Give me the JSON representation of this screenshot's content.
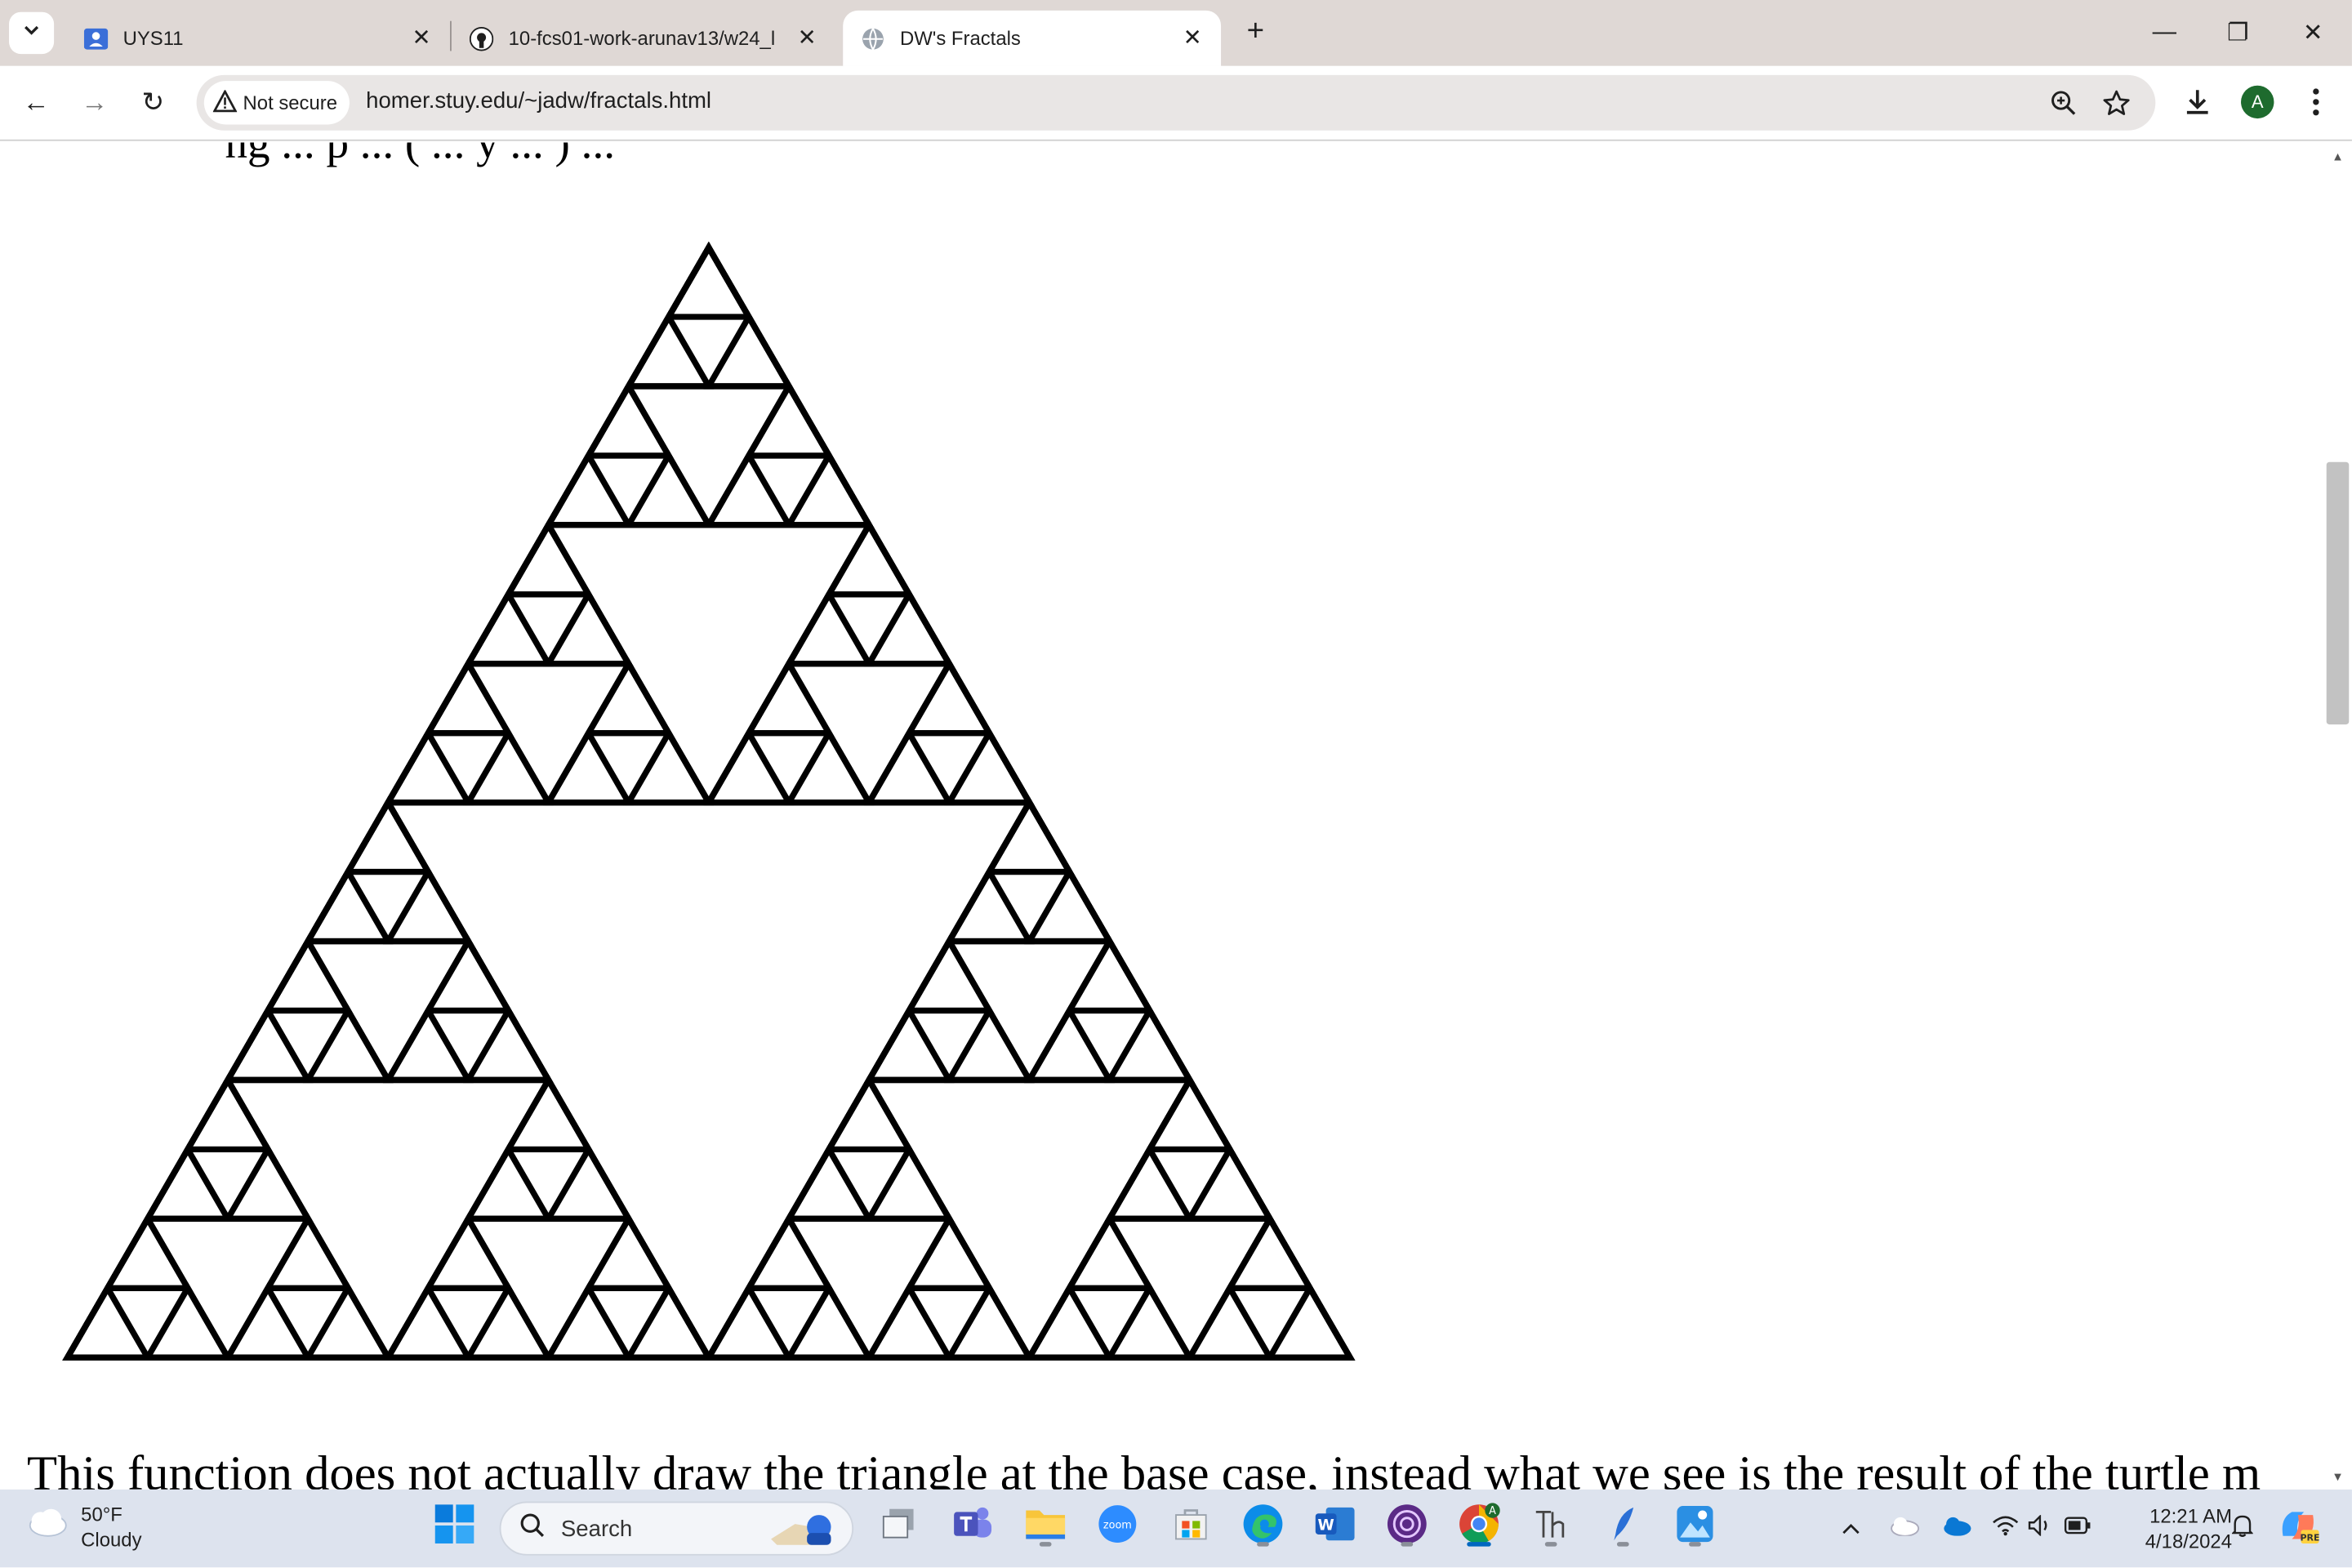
{
  "tabs": [
    {
      "title": "UYS11",
      "favicon": "person-icon"
    },
    {
      "title": "10-fcs01-work-arunav13/w24_l",
      "favicon": "github-icon"
    },
    {
      "title": "DW's Fractals",
      "favicon": "globe-icon",
      "active": true
    }
  ],
  "new_tab_label": "+",
  "window_controls": {
    "minimize": "—",
    "restore": "❐",
    "close": "✕"
  },
  "toolbar": {
    "back": "←",
    "forward": "→",
    "reload": "↻",
    "security_label": "Not secure",
    "url": "homer.stuy.edu/~jadw/fractals.html",
    "profile_initial": "A"
  },
  "content": {
    "partial_top_text": "ng ... p ... ( ... y ... ) ...",
    "fractal_name": "sierpinski-triangle",
    "fractal_depth": 4,
    "paragraph": "This function does not actually draw the triangle at the base case, instead what we see is the result of the turtle m"
  },
  "taskbar": {
    "weather_temp": "50°F",
    "weather_desc": "Cloudy",
    "search_label": "Search",
    "clock_time": "12:21 AM",
    "clock_date": "4/18/2024"
  },
  "colors": {
    "tabstrip": "#dfd8d5",
    "taskbar": "#dde3ee",
    "accent": "#0067c0"
  }
}
